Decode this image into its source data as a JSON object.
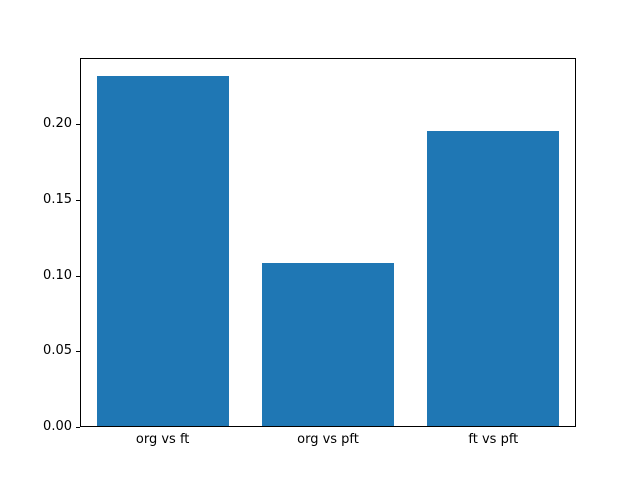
{
  "chart_data": {
    "type": "bar",
    "title": "",
    "xlabel": "",
    "ylabel": "",
    "categories": [
      "org vs ft",
      "org vs pft",
      "ft vs pft"
    ],
    "values": [
      0.232,
      0.108,
      0.196
    ],
    "bar_color": "#1f77b4",
    "ylim": [
      0.0,
      0.2436
    ],
    "yticks": [
      0.0,
      0.05,
      0.1,
      0.15,
      0.2
    ],
    "ytick_labels": [
      "0.00",
      "0.05",
      "0.10",
      "0.15",
      "0.20"
    ],
    "grid": false,
    "legend": null
  }
}
